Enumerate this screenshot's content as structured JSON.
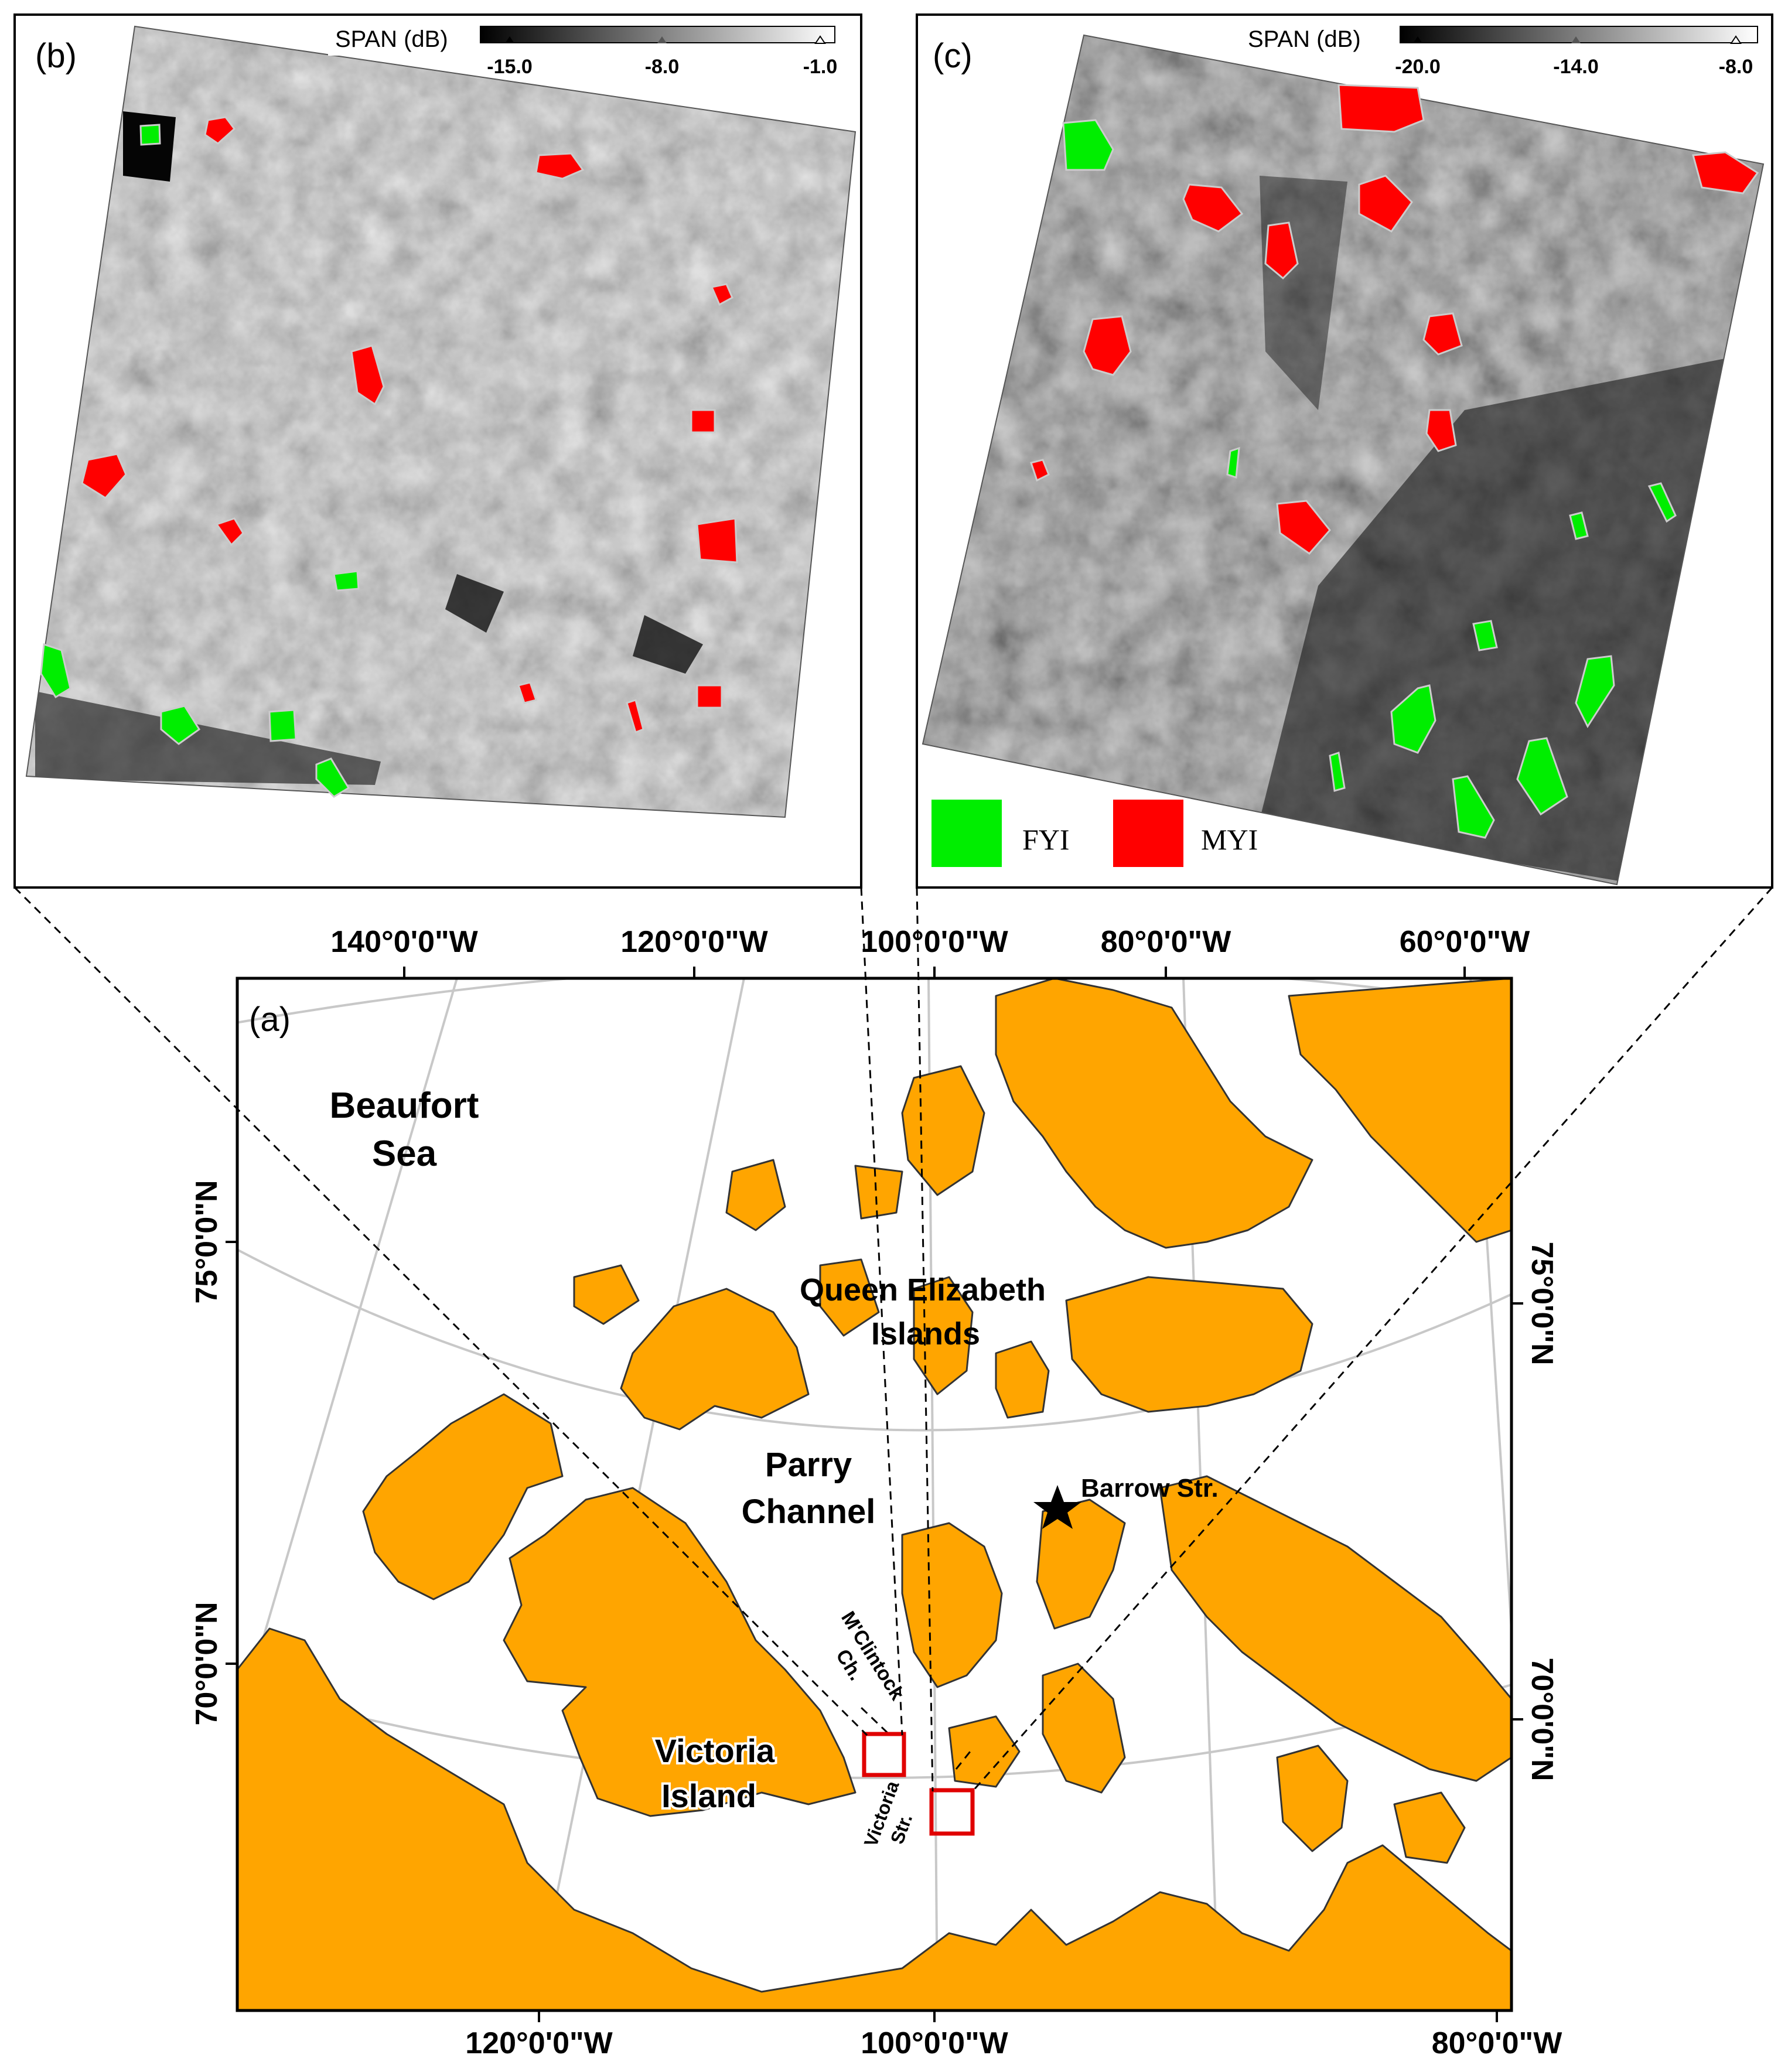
{
  "panels": {
    "b": {
      "label": "(b)",
      "colorbar": {
        "title": "SPAN (dB)",
        "ticks": [
          "-15.0",
          "-8.0",
          "-1.0"
        ]
      }
    },
    "c": {
      "label": "(c)",
      "colorbar": {
        "title": "SPAN (dB)",
        "ticks": [
          "-20.0",
          "-14.0",
          "-8.0"
        ]
      }
    },
    "a": {
      "label": "(a)"
    }
  },
  "legend": {
    "items": [
      {
        "label": "FYI",
        "color": "#00ee00"
      },
      {
        "label": "MYI",
        "color": "#ff0000"
      }
    ]
  },
  "map": {
    "land_color": "#ffa500",
    "water_color": "#ffffff",
    "graticule_color": "#c8c8c8",
    "top_lon_labels": [
      "140°0'0\"W",
      "120°0'0\"W",
      "100°0'0\"W",
      "80°0'0\"W",
      "60°0'0\"W"
    ],
    "bottom_lon_labels": [
      "120°0'0\"W",
      "100°0'0\"W",
      "80°0'0\"W"
    ],
    "left_lat_labels": [
      "75°0'0\"N",
      "70°0'0\"N"
    ],
    "right_lat_labels": [
      "75°0'0\"N",
      "70°0'0\"N"
    ],
    "place_names": {
      "beaufort_1": "Beaufort",
      "beaufort_2": "Sea",
      "qei_1": "Queen Elizabeth",
      "qei_2": "Islands",
      "parry_1": "Parry",
      "parry_2": "Channel",
      "barrow": "Barrow Str.",
      "mclintock_1": "M'Clintock",
      "mclintock_2": "Ch.",
      "victoria_1": "Victoria",
      "victoria_2": "Island",
      "victoria_str_1": "Victoria",
      "victoria_str_2": "Str."
    }
  }
}
